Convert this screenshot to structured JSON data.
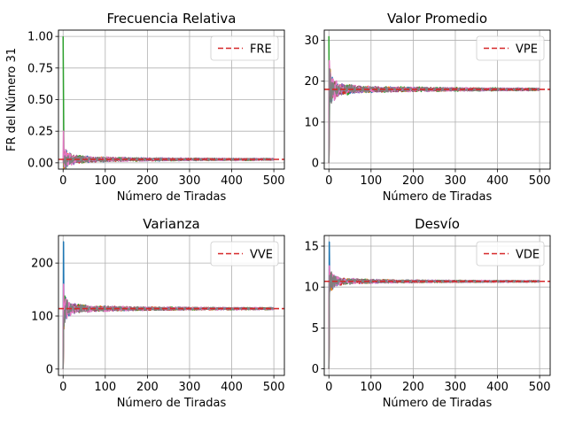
{
  "chart_data": [
    {
      "type": "line",
      "title": "Frecuencia Relativa",
      "xlabel": "Número de Tiradas",
      "ylabel": "FR del Número 31",
      "xlim": [
        -11,
        525
      ],
      "ylim": [
        -0.05,
        1.05
      ],
      "xticks": [
        "0",
        "100",
        "200",
        "300",
        "400",
        "500"
      ],
      "yticks": [
        "0.00",
        "0.25",
        "0.50",
        "0.75",
        "1.00"
      ],
      "grid": true,
      "legend_position": "upper right",
      "reference": {
        "name": "FRE",
        "value": 0.027,
        "style": "dashed"
      },
      "n": 500,
      "series": [
        {
          "start": 0.0,
          "spike": [
            1,
            0.0
          ],
          "converge_to": 0.027,
          "amplitude": 0.18
        },
        {
          "start": 0.0,
          "spike": [
            1,
            0.0
          ],
          "converge_to": 0.027,
          "amplitude": 0.17
        },
        {
          "start": 1.0,
          "spike": [
            1,
            0.5
          ],
          "converge_to": 0.027,
          "amplitude": 0.18
        },
        {
          "start": 0.0,
          "spike": [
            1,
            0.0
          ],
          "converge_to": 0.027,
          "amplitude": 0.16
        },
        {
          "start": 0.0,
          "spike": [
            1,
            0.0
          ],
          "converge_to": 0.027,
          "amplitude": 0.17
        },
        {
          "start": 0.0,
          "spike": [
            1,
            0.0
          ],
          "converge_to": 0.027,
          "amplitude": 0.16
        },
        {
          "start": 0.0,
          "spike": [
            1,
            0.25
          ],
          "converge_to": 0.027,
          "amplitude": 0.2
        },
        {
          "start": 0.0,
          "spike": [
            1,
            0.0
          ],
          "converge_to": 0.027,
          "amplitude": 0.16
        }
      ]
    },
    {
      "type": "line",
      "title": "Valor Promedio",
      "xlabel": "Número de Tiradas",
      "ylabel": "",
      "xlim": [
        -11,
        525
      ],
      "ylim": [
        -1.5,
        32.5
      ],
      "xticks": [
        "0",
        "100",
        "200",
        "300",
        "400",
        "500"
      ],
      "yticks": [
        "0",
        "10",
        "20",
        "30"
      ],
      "grid": true,
      "legend_position": "upper right",
      "reference": {
        "name": "VPE",
        "value": 18,
        "style": "dashed"
      },
      "n": 500,
      "series": [
        {
          "start": 0,
          "spike": [
            1,
            22
          ],
          "converge_to": 18,
          "amplitude": 7
        },
        {
          "start": 0,
          "spike": [
            1,
            20
          ],
          "converge_to": 18,
          "amplitude": 7
        },
        {
          "start": 31,
          "spike": [
            1,
            9
          ],
          "converge_to": 18,
          "amplitude": 8
        },
        {
          "start": 0,
          "spike": [
            1,
            16
          ],
          "converge_to": 18,
          "amplitude": 7
        },
        {
          "start": 0,
          "spike": [
            1,
            24
          ],
          "converge_to": 18,
          "amplitude": 7
        },
        {
          "start": 0,
          "spike": [
            1,
            14
          ],
          "converge_to": 18,
          "amplitude": 7
        },
        {
          "start": 0,
          "spike": [
            1,
            25
          ],
          "converge_to": 18,
          "amplitude": 8
        },
        {
          "start": 0,
          "spike": [
            1,
            12
          ],
          "converge_to": 18,
          "amplitude": 7
        }
      ]
    },
    {
      "type": "line",
      "title": "Varianza",
      "xlabel": "Número de Tiradas",
      "ylabel": "",
      "xlim": [
        -11,
        525
      ],
      "ylim": [
        -12,
        252
      ],
      "xticks": [
        "0",
        "100",
        "200",
        "300",
        "400",
        "500"
      ],
      "yticks": [
        "0",
        "100",
        "200"
      ],
      "grid": true,
      "legend_position": "upper right",
      "reference": {
        "name": "VVE",
        "value": 114,
        "style": "dashed"
      },
      "n": 500,
      "series": [
        {
          "start": 0,
          "spike": [
            1,
            240
          ],
          "converge_to": 114,
          "amplitude": 45
        },
        {
          "start": 0,
          "spike": [
            1,
            90
          ],
          "converge_to": 114,
          "amplitude": 45
        },
        {
          "start": 0,
          "spike": [
            1,
            150
          ],
          "converge_to": 114,
          "amplitude": 45
        },
        {
          "start": 0,
          "spike": [
            1,
            80
          ],
          "converge_to": 114,
          "amplitude": 45
        },
        {
          "start": 0,
          "spike": [
            1,
            130
          ],
          "converge_to": 114,
          "amplitude": 45
        },
        {
          "start": 0,
          "spike": [
            1,
            100
          ],
          "converge_to": 114,
          "amplitude": 45
        },
        {
          "start": 0,
          "spike": [
            1,
            160
          ],
          "converge_to": 114,
          "amplitude": 50
        },
        {
          "start": 0,
          "spike": [
            1,
            70
          ],
          "converge_to": 114,
          "amplitude": 45
        }
      ]
    },
    {
      "type": "line",
      "title": "Desvío",
      "xlabel": "Número de Tiradas",
      "ylabel": "",
      "xlim": [
        -11,
        525
      ],
      "ylim": [
        -0.8,
        16.3
      ],
      "xticks": [
        "0",
        "100",
        "200",
        "300",
        "400",
        "500"
      ],
      "yticks": [
        "0",
        "5",
        "10",
        "15"
      ],
      "grid": true,
      "legend_position": "upper right",
      "reference": {
        "name": "VDE",
        "value": 10.7,
        "style": "dashed"
      },
      "n": 500,
      "series": [
        {
          "start": 0,
          "spike": [
            1,
            15.5
          ],
          "converge_to": 10.7,
          "amplitude": 2.3
        },
        {
          "start": 0,
          "spike": [
            1,
            9.5
          ],
          "converge_to": 10.7,
          "amplitude": 2.3
        },
        {
          "start": 0,
          "spike": [
            1,
            12.2
          ],
          "converge_to": 10.7,
          "amplitude": 2.3
        },
        {
          "start": 0,
          "spike": [
            1,
            9
          ],
          "converge_to": 10.7,
          "amplitude": 2.3
        },
        {
          "start": 0,
          "spike": [
            1,
            11.4
          ],
          "converge_to": 10.7,
          "amplitude": 2.3
        },
        {
          "start": 0,
          "spike": [
            1,
            10
          ],
          "converge_to": 10.7,
          "amplitude": 2.3
        },
        {
          "start": 0,
          "spike": [
            1,
            12.6
          ],
          "converge_to": 10.7,
          "amplitude": 2.5
        },
        {
          "start": 0,
          "spike": [
            1,
            8.4
          ],
          "converge_to": 10.7,
          "amplitude": 2.3
        }
      ]
    }
  ],
  "colors": {
    "series": [
      "#1f77b4",
      "#ff7f0e",
      "#2ca02c",
      "#d62728",
      "#9467bd",
      "#8c564b",
      "#e377c2",
      "#7f7f7f"
    ],
    "reference": "#d62728",
    "grid": "#b0b0b0",
    "axes": "#000000"
  }
}
